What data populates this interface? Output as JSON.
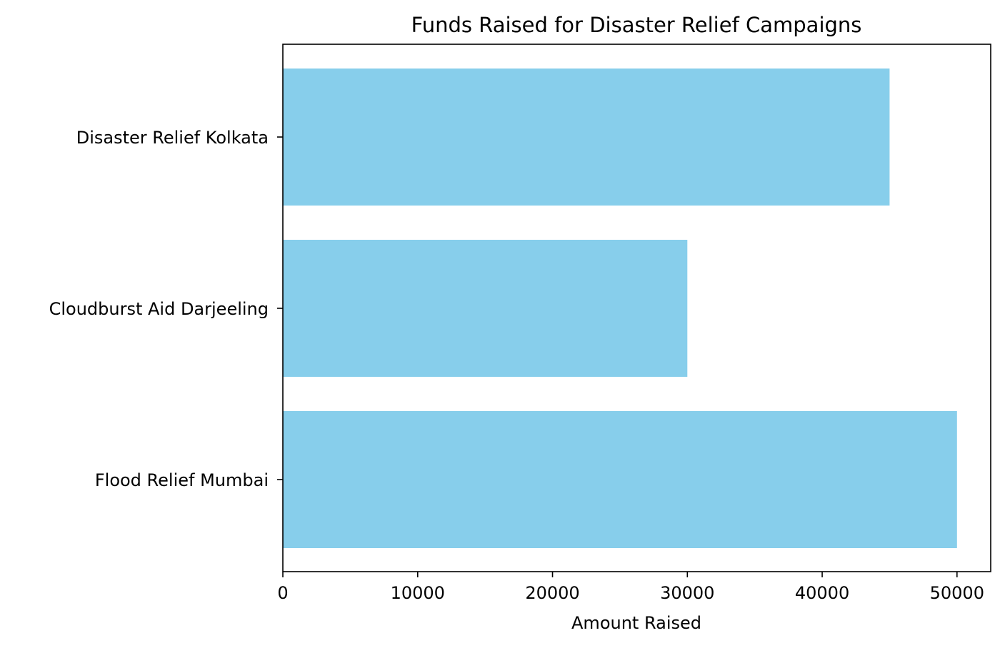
{
  "chart_data": {
    "type": "bar",
    "orientation": "horizontal",
    "title": "Funds Raised for Disaster Relief Campaigns",
    "xlabel": "Amount Raised",
    "ylabel": "",
    "categories": [
      "Flood Relief Mumbai",
      "Cloudburst Aid Darjeeling",
      "Disaster Relief Kolkata"
    ],
    "values": [
      50000,
      30000,
      45000
    ],
    "xlim": [
      0,
      52500
    ],
    "xticks": [
      0,
      10000,
      20000,
      30000,
      40000,
      50000
    ],
    "xtick_labels": [
      "0",
      "10000",
      "20000",
      "30000",
      "40000",
      "50000"
    ],
    "bar_color": "#87CEEB",
    "grid": false,
    "legend": "none"
  }
}
